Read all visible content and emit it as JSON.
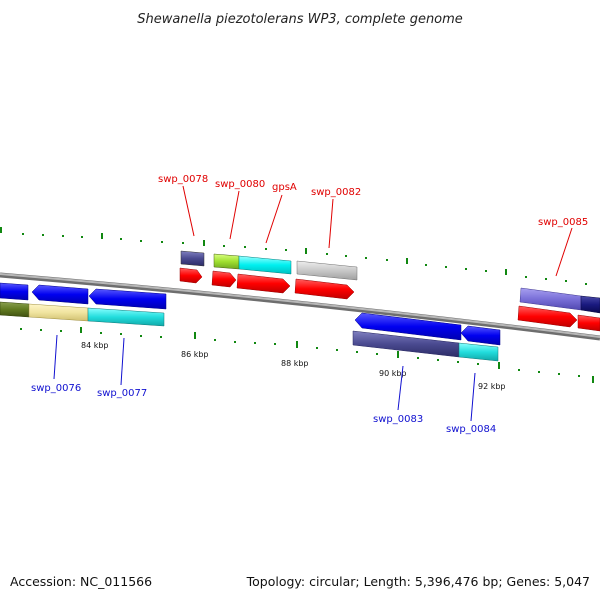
{
  "title": "Shewanella piezotolerans WP3, complete genome",
  "footer": {
    "accession": "Accession: NC_011566",
    "summary": "Topology: circular; Length: 5,396,476 bp; Genes: 5,047"
  },
  "axis": {
    "tick_labels": [
      "84 kbp",
      "86 kbp",
      "88 kbp",
      "90 kbp",
      "92 kbp"
    ]
  },
  "gene_labels_top": [
    "swp_0078",
    "swp_0080",
    "gpsA",
    "swp_0082",
    "swp_0085"
  ],
  "gene_labels_bottom": [
    "swp_0076",
    "swp_0077",
    "swp_0083",
    "swp_0084"
  ],
  "colors": {
    "forward_label": "#e00000",
    "reverse_label": "#1010d0",
    "backbone": "#888888",
    "tick": "#118811"
  }
}
